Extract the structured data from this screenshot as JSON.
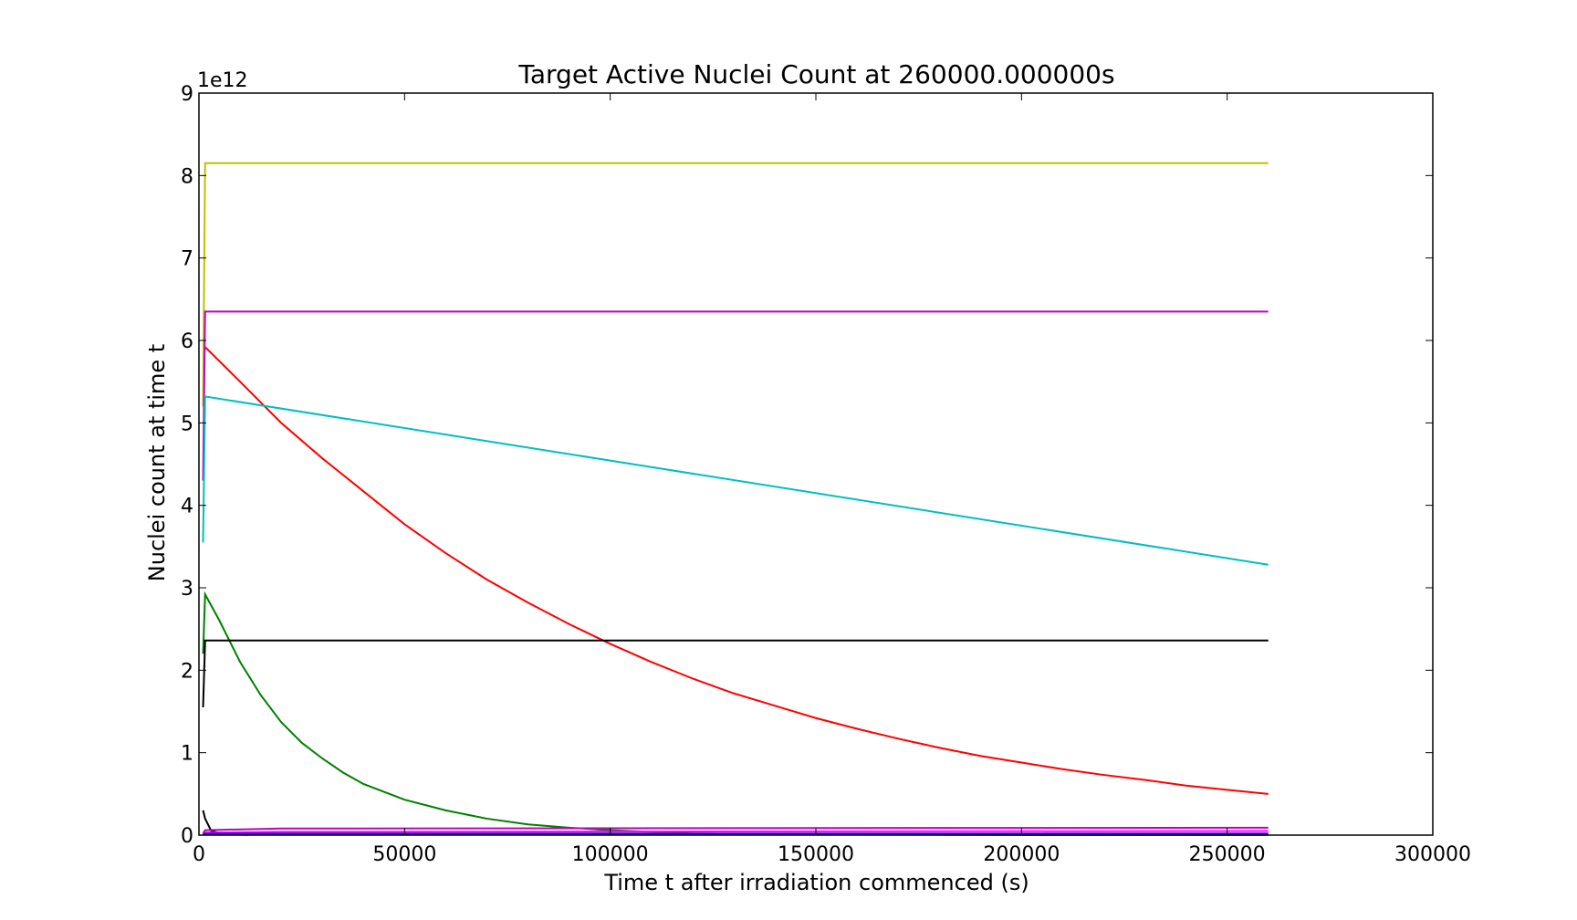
{
  "chart_data": {
    "type": "line",
    "title": "Target Active Nuclei Count at 260000.000000s",
    "xlabel": "Time t after irradiation commenced (s)",
    "ylabel": "Nuclei count at time t",
    "y_scale_label": "1e12",
    "xlim": [
      0,
      300000
    ],
    "ylim": [
      0,
      9
    ],
    "x_ticks": [
      0,
      50000,
      100000,
      150000,
      200000,
      250000,
      300000
    ],
    "x_tick_labels": [
      "0",
      "50000",
      "100000",
      "150000",
      "200000",
      "250000",
      "300000"
    ],
    "y_ticks": [
      0,
      1,
      2,
      3,
      4,
      5,
      6,
      7,
      8,
      9
    ],
    "y_tick_labels": [
      "0",
      "1",
      "2",
      "3",
      "4",
      "5",
      "6",
      "7",
      "8",
      "9"
    ],
    "grid": false,
    "legend": "none",
    "y_multiplier": 1000000000000.0,
    "series": [
      {
        "color": "#bfbf00",
        "points": [
          [
            1000,
            5.2
          ],
          [
            1500,
            8.15
          ],
          [
            260000,
            8.15
          ]
        ]
      },
      {
        "color": "#bf00bf",
        "points": [
          [
            1000,
            4.3
          ],
          [
            1500,
            6.35
          ],
          [
            260000,
            6.35
          ]
        ]
      },
      {
        "color": "#ff0000",
        "points": [
          [
            1500,
            5.92
          ],
          [
            10000,
            5.5
          ],
          [
            20000,
            5.0
          ],
          [
            30000,
            4.57
          ],
          [
            40000,
            4.17
          ],
          [
            50000,
            3.77
          ],
          [
            60000,
            3.42
          ],
          [
            70000,
            3.1
          ],
          [
            80000,
            2.82
          ],
          [
            90000,
            2.56
          ],
          [
            100000,
            2.32
          ],
          [
            110000,
            2.1
          ],
          [
            120000,
            1.9
          ],
          [
            130000,
            1.72
          ],
          [
            140000,
            1.57
          ],
          [
            150000,
            1.42
          ],
          [
            160000,
            1.29
          ],
          [
            170000,
            1.17
          ],
          [
            180000,
            1.06
          ],
          [
            190000,
            0.96
          ],
          [
            200000,
            0.88
          ],
          [
            210000,
            0.8
          ],
          [
            220000,
            0.73
          ],
          [
            230000,
            0.67
          ],
          [
            240000,
            0.6
          ],
          [
            250000,
            0.55
          ],
          [
            260000,
            0.5
          ]
        ]
      },
      {
        "color": "#00bfbf",
        "points": [
          [
            1000,
            3.55
          ],
          [
            1500,
            5.32
          ],
          [
            260000,
            3.28
          ]
        ]
      },
      {
        "color": "#008000",
        "points": [
          [
            1000,
            2.2
          ],
          [
            1500,
            2.92
          ],
          [
            5000,
            2.6
          ],
          [
            10000,
            2.1
          ],
          [
            15000,
            1.7
          ],
          [
            20000,
            1.37
          ],
          [
            25000,
            1.12
          ],
          [
            30000,
            0.93
          ],
          [
            35000,
            0.76
          ],
          [
            40000,
            0.62
          ],
          [
            50000,
            0.43
          ],
          [
            60000,
            0.3
          ],
          [
            70000,
            0.2
          ],
          [
            80000,
            0.13
          ],
          [
            90000,
            0.09
          ],
          [
            100000,
            0.06
          ],
          [
            110000,
            0.04
          ],
          [
            120000,
            0.02
          ],
          [
            140000,
            0.01
          ],
          [
            160000,
            0.005
          ],
          [
            200000,
            0.002
          ],
          [
            260000,
            0.001
          ]
        ]
      },
      {
        "color": "#000000",
        "points": [
          [
            1000,
            1.55
          ],
          [
            1500,
            2.36
          ],
          [
            260000,
            2.36
          ]
        ]
      },
      {
        "color": "#000000",
        "points": [
          [
            1000,
            0.3
          ],
          [
            1500,
            0.2
          ],
          [
            3000,
            0.05
          ],
          [
            6000,
            0.01
          ],
          [
            12000,
            0.003
          ]
        ]
      },
      {
        "color": "#bf00bf",
        "points": [
          [
            1000,
            0.02
          ],
          [
            1500,
            0.06
          ],
          [
            20000,
            0.08
          ],
          [
            260000,
            0.09
          ]
        ]
      },
      {
        "color": "#ff00ff",
        "points": [
          [
            1000,
            0.01
          ],
          [
            1500,
            0.03
          ],
          [
            20000,
            0.04
          ],
          [
            260000,
            0.05
          ]
        ]
      },
      {
        "color": "#5a00ff",
        "points": [
          [
            1000,
            0.01
          ],
          [
            1500,
            0.02
          ],
          [
            260000,
            0.02
          ]
        ]
      },
      {
        "color": "#0000ff",
        "points": [
          [
            1000,
            0.005
          ],
          [
            1500,
            0.01
          ],
          [
            260000,
            0.01
          ]
        ]
      }
    ]
  }
}
